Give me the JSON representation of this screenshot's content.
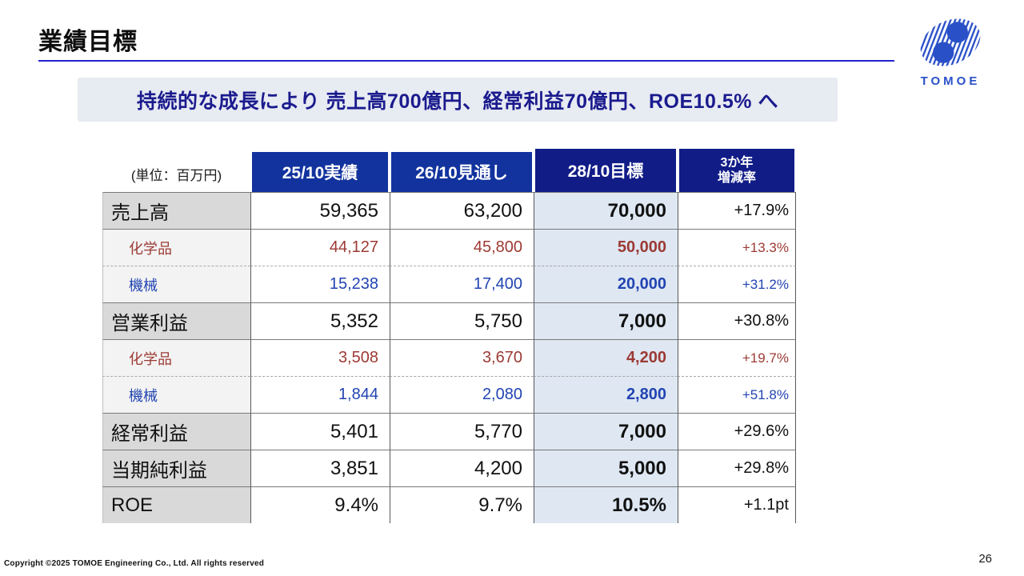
{
  "page": {
    "title": "業績目標",
    "banner": "持続的な成長により 売上高700億円、経常利益70億円、ROE10.5% へ",
    "footer": "Copyright ©2025 TOMOE Engineering Co., Ltd. All rights reserved",
    "page_number": "26",
    "logo_text": "TOMOE"
  },
  "table": {
    "unit_label": "(単位：百万円)",
    "headers": [
      "25/10実績",
      "26/10見通し",
      "28/10目標",
      "3か年\n増減率"
    ],
    "rows": [
      {
        "label": "売上高",
        "kind": "main",
        "divider": "solid",
        "values": [
          "59,365",
          "63,200",
          "70,000",
          "+17.9%"
        ]
      },
      {
        "label": "化学品",
        "kind": "sub_red",
        "divider": "solid",
        "values": [
          "44,127",
          "45,800",
          "50,000",
          "+13.3%"
        ]
      },
      {
        "label": "機械",
        "kind": "sub_blue",
        "divider": "dashed",
        "values": [
          "15,238",
          "17,400",
          "20,000",
          "+31.2%"
        ]
      },
      {
        "label": "営業利益",
        "kind": "main",
        "divider": "solid",
        "values": [
          "5,352",
          "5,750",
          "7,000",
          "+30.8%"
        ]
      },
      {
        "label": "化学品",
        "kind": "sub_red",
        "divider": "solid",
        "values": [
          "3,508",
          "3,670",
          "4,200",
          "+19.7%"
        ]
      },
      {
        "label": "機械",
        "kind": "sub_blue",
        "divider": "dashed",
        "values": [
          "1,844",
          "2,080",
          "2,800",
          "+51.8%"
        ]
      },
      {
        "label": "経常利益",
        "kind": "main",
        "divider": "solid",
        "values": [
          "5,401",
          "5,770",
          "7,000",
          "+29.6%"
        ]
      },
      {
        "label": "当期純利益",
        "kind": "main",
        "divider": "solid",
        "values": [
          "3,851",
          "4,200",
          "5,000",
          "+29.8%"
        ]
      },
      {
        "label": "ROE",
        "kind": "main",
        "divider": "solid",
        "values": [
          "9.4%",
          "9.7%",
          "10.5%",
          "+1.1pt"
        ]
      }
    ]
  },
  "colors": {
    "header_blue": "#12339E",
    "header_navy": "#111C87",
    "target_column_bg": "#DEE7F2",
    "chemical_red": "#9C3A34",
    "machinery_blue": "#2244B2",
    "banner_bg": "#E7EBF2",
    "banner_text": "#1B1B8E",
    "title_underline": "#2323CD",
    "main_label_bg": "#D9D9D9",
    "sub_label_bg": "#F3F3F3",
    "logo_blue": "#2A50C8"
  }
}
